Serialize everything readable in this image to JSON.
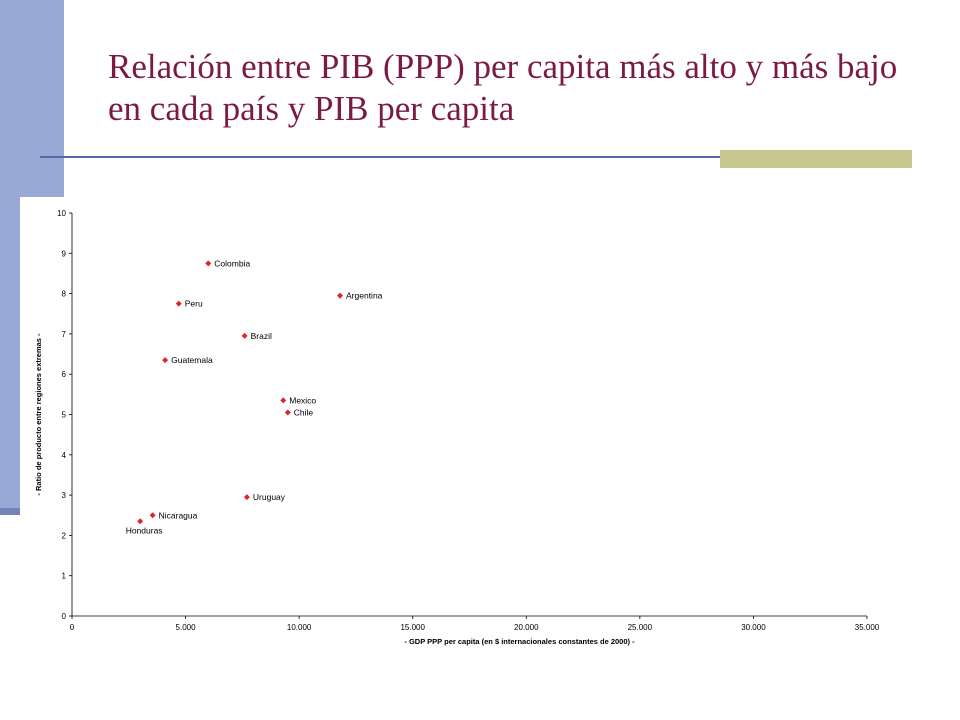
{
  "slide": {
    "title": "Relación entre PIB (PPP) per capita más alto y más bajo en cada país y PIB per capita"
  },
  "colors": {
    "title": "#7a1a45",
    "side_bar": "#98a9d6",
    "rule": "#5a66a6",
    "accent": "#c8c88e",
    "marker": "#e0242b"
  },
  "chart_data": {
    "type": "scatter",
    "xlabel": "- GDP PPP per capita (en $ internacionales constantes de 2000) -",
    "ylabel": "- Ratio de producto entre regiones extremas -",
    "xlim": [
      0,
      35000
    ],
    "ylim": [
      0,
      10
    ],
    "x_ticks": [
      "0",
      "5.000",
      "10.000",
      "15.000",
      "20.000",
      "25.000",
      "30.000",
      "35.000"
    ],
    "y_ticks": [
      "0",
      "1",
      "2",
      "3",
      "4",
      "5",
      "6",
      "7",
      "8",
      "9",
      "10"
    ],
    "grid": false,
    "legend": "none",
    "points": [
      {
        "label": "Colombia",
        "x": 6000,
        "y": 8.75
      },
      {
        "label": "Argentina",
        "x": 11800,
        "y": 7.95
      },
      {
        "label": "Peru",
        "x": 4700,
        "y": 7.75
      },
      {
        "label": "Brazil",
        "x": 7600,
        "y": 6.95
      },
      {
        "label": "Guatemala",
        "x": 4100,
        "y": 6.35
      },
      {
        "label": "Mexico",
        "x": 9300,
        "y": 5.35
      },
      {
        "label": "Chile",
        "x": 9500,
        "y": 5.05
      },
      {
        "label": "Uruguay",
        "x": 7700,
        "y": 2.95
      },
      {
        "label": "Nicaragua",
        "x": 3550,
        "y": 2.5
      },
      {
        "label": "Honduras",
        "x": 3000,
        "y": 2.35
      }
    ]
  }
}
